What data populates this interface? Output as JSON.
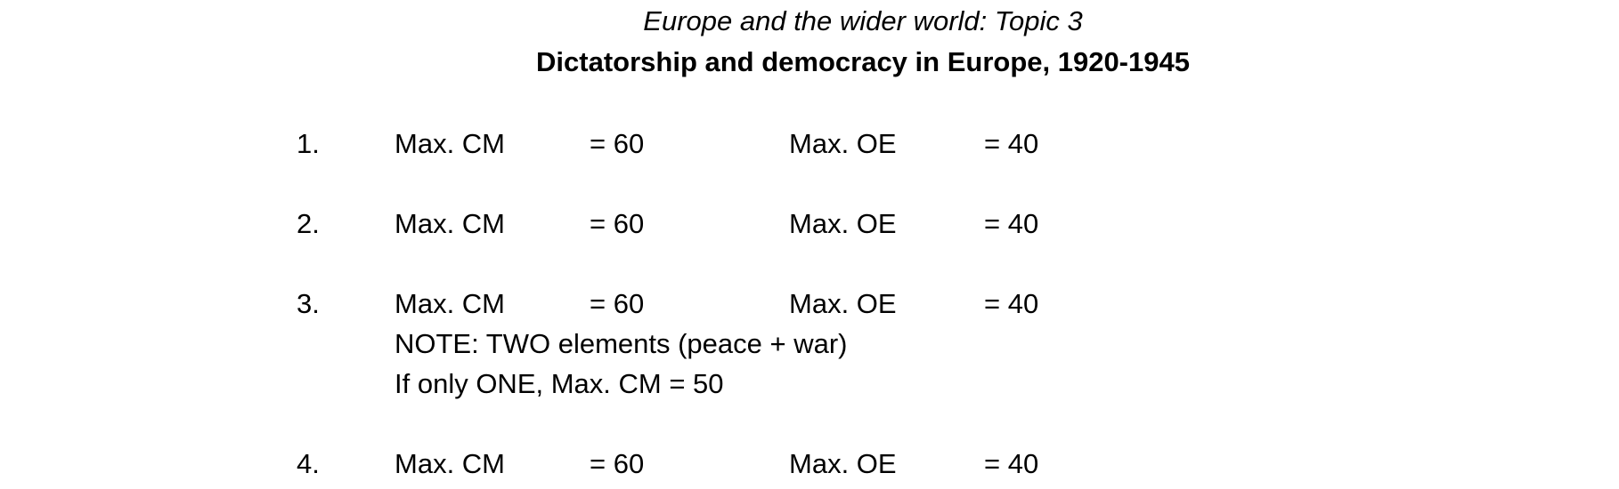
{
  "header": {
    "title": "Europe and the wider world: Topic 3",
    "subtitle": "Dictatorship and democracy in Europe, 1920-1945"
  },
  "questions": [
    {
      "number": "1.",
      "cm_label": "Max. CM",
      "cm_value": "= 60",
      "oe_label": "Max. OE",
      "oe_value": "= 40"
    },
    {
      "number": "2.",
      "cm_label": "Max. CM",
      "cm_value": "= 60",
      "oe_label": "Max. OE",
      "oe_value": "= 40"
    },
    {
      "number": "3.",
      "cm_label": "Max. CM",
      "cm_value": "= 60",
      "oe_label": "Max. OE",
      "oe_value": "= 40",
      "notes": [
        "NOTE: TWO elements (peace + war)",
        "If only ONE, Max. CM = 50"
      ]
    },
    {
      "number": "4.",
      "cm_label": "Max. CM",
      "cm_value": "= 60",
      "oe_label": "Max. OE",
      "oe_value": "= 40"
    }
  ]
}
